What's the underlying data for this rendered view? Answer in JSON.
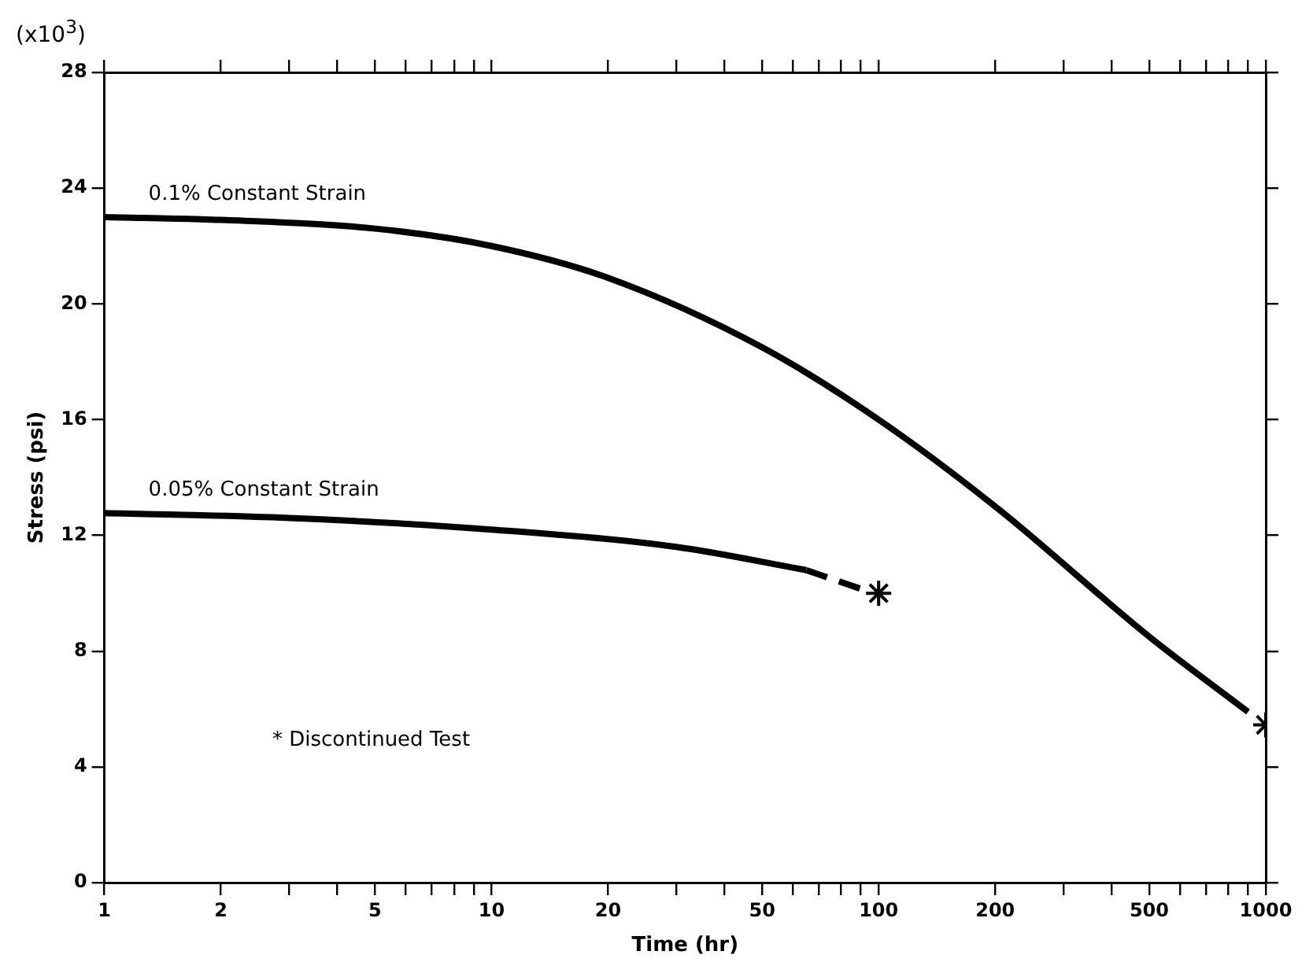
{
  "chart_data": {
    "type": "line",
    "xlabel": "Time (hr)",
    "ylabel": "Stress (psi)",
    "log": "x",
    "grid": false,
    "legend": false,
    "marker": "none",
    "line_style": "solid",
    "xlim": [
      1,
      1000
    ],
    "ylim": [
      0,
      28
    ],
    "xticks": [
      1,
      2,
      {
        "value": 3,
        "label": null
      },
      {
        "value": 4,
        "label": null
      },
      5,
      {
        "value": 6,
        "label": null
      },
      {
        "value": 7,
        "label": null
      },
      {
        "value": 8,
        "label": null
      },
      {
        "value": 9,
        "label": null
      },
      10,
      20,
      {
        "value": 30,
        "label": null
      },
      {
        "value": 40,
        "label": null
      },
      50,
      {
        "value": 60,
        "label": null
      },
      {
        "value": 70,
        "label": null
      },
      {
        "value": 80,
        "label": null
      },
      {
        "value": 90,
        "label": null
      },
      100,
      200,
      {
        "value": 300,
        "label": null
      },
      {
        "value": 400,
        "label": null
      },
      500,
      {
        "value": 600,
        "label": null
      },
      {
        "value": 700,
        "label": null
      },
      {
        "value": 800,
        "label": null
      },
      {
        "value": 900,
        "label": null
      },
      1000
    ],
    "yticks": [
      0,
      4,
      8,
      12,
      16,
      20,
      24,
      28
    ],
    "annotations": [
      "(x10$^{3}$)",
      "* Discontinued Test"
    ],
    "series": [
      {
        "name": "0.1% Constant Strain",
        "color": "#000000",
        "x": [
          1,
          2,
          5,
          10,
          20,
          50,
          100,
          200,
          500,
          900
        ],
        "values": [
          23.0,
          22.9,
          22.6,
          22.0,
          20.9,
          18.5,
          16.0,
          13.0,
          8.5,
          5.9
        ]
      },
      {
        "name": "0.05% Constant Strain",
        "color": "#000000",
        "x": [
          1,
          3,
          10,
          30,
          65
        ],
        "values": [
          12.77,
          12.6,
          12.2,
          11.6,
          10.8
        ]
      },
      {
        "color": "#000000",
        "line_style": "dashed",
        "x": [
          65,
          90
        ],
        "values": [
          10.8,
          10.15
        ]
      },
      {
        "type": "scatter",
        "marker": "cross",
        "color": "#000000",
        "x": [
          100,
          1000
        ],
        "values": [
          10.0,
          5.45
        ]
      }
    ]
  }
}
